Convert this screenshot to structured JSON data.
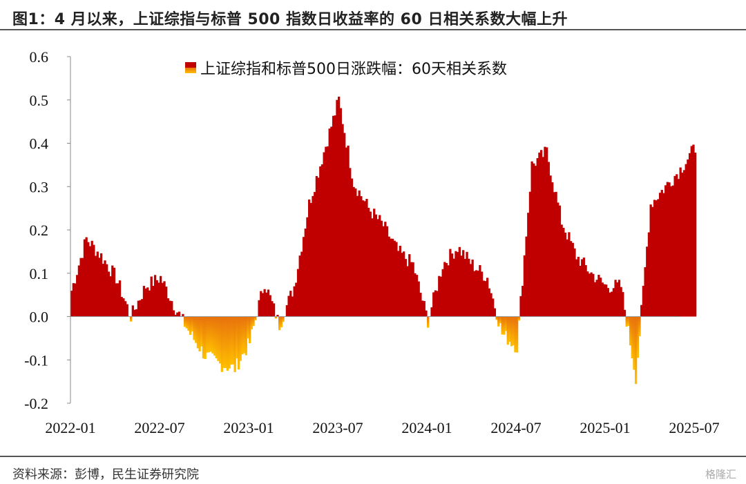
{
  "header": {
    "title": "图1：4 月以来，上证综指与标普 500 指数日收益率的 60 日相关系数大幅上升"
  },
  "footer": {
    "source": "资料来源：彭博，民生证券研究院",
    "watermark": "格隆汇"
  },
  "colors": {
    "positive_top": "#c00000",
    "negative_top": "#e8720c",
    "negative_bottom": "#ffc000",
    "axis": "#888888",
    "rule": "#555555"
  },
  "chart_data": {
    "type": "area",
    "title": "",
    "xlabel": "",
    "ylabel": "",
    "ylim": [
      -0.2,
      0.6
    ],
    "yticks": [
      "0.6",
      "0.5",
      "0.4",
      "0.3",
      "0.2",
      "0.1",
      "0.0",
      "-0.1",
      "-0.2"
    ],
    "xticks": [
      "2022-01",
      "2022-07",
      "2023-01",
      "2023-07",
      "2024-01",
      "2024-07",
      "2025-01",
      "2025-07"
    ],
    "legend_position": "top-center",
    "series": [
      {
        "name": "上证综指和标普500日涨跌幅：60天相关系数",
        "x": [
          "2022-01",
          "2022-02",
          "2022-03",
          "2022-04",
          "2022-05",
          "2022-06",
          "2022-07",
          "2022-08",
          "2022-09",
          "2022-10",
          "2022-11",
          "2022-12",
          "2023-01",
          "2023-02",
          "2023-03",
          "2023-04",
          "2023-05",
          "2023-06",
          "2023-07",
          "2023-08",
          "2023-09",
          "2023-10",
          "2023-11",
          "2023-12",
          "2024-01",
          "2024-02",
          "2024-03",
          "2024-04",
          "2024-05",
          "2024-06",
          "2024-07",
          "2024-08",
          "2024-09",
          "2024-10",
          "2024-11",
          "2024-12",
          "2025-01",
          "2025-02",
          "2025-03",
          "2025-04",
          "2025-05",
          "2025-06",
          "2025-07"
        ],
        "values": [
          0.06,
          0.18,
          0.14,
          0.09,
          0.0,
          0.07,
          0.09,
          0.02,
          -0.04,
          -0.09,
          -0.11,
          -0.12,
          -0.06,
          0.08,
          -0.02,
          0.07,
          0.26,
          0.38,
          0.5,
          0.31,
          0.25,
          0.21,
          0.15,
          0.12,
          -0.01,
          0.12,
          0.16,
          0.12,
          0.09,
          -0.04,
          -0.07,
          0.35,
          0.38,
          0.22,
          0.14,
          0.1,
          0.07,
          0.07,
          -0.14,
          0.26,
          0.3,
          0.34,
          0.39
        ]
      }
    ]
  }
}
